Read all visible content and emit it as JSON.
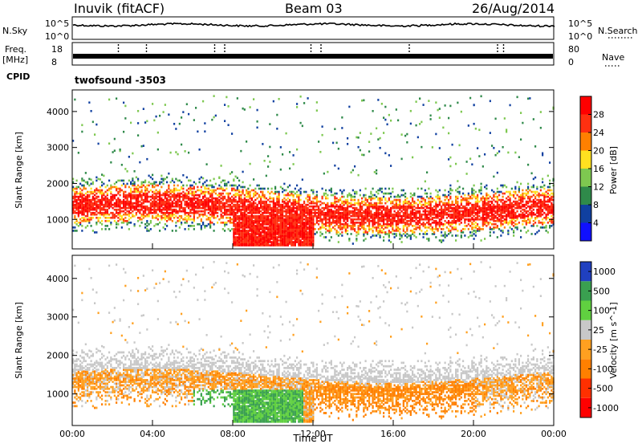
{
  "header": {
    "station": "Inuvik (fitACF)",
    "beam": "Beam 03",
    "date": "26/Aug/2014"
  },
  "top_strips": {
    "nsky_label": "N.Sky",
    "nsky_ticks": [
      "10^5",
      "10^0"
    ],
    "nsearch_label": "N.Search",
    "nsearch_ticks": [
      "10^5",
      "10^0"
    ],
    "freq_label_1": "Freq.",
    "freq_label_2": "[MHz]",
    "freq_ticks": [
      "18",
      "8"
    ],
    "nave_label": "Nave",
    "nave_ticks": [
      "80",
      "0"
    ],
    "cpid_label": "CPID",
    "cpid_value": "twofsound -3503"
  },
  "chart_data": [
    {
      "type": "heatmap",
      "name": "power",
      "ylabel": "Slant Range [km]",
      "xlabel": "Time UT",
      "ylim": [
        180,
        4600
      ],
      "xlim_hours": [
        0,
        24
      ],
      "y_ticks": [
        "1000",
        "2000",
        "3000",
        "4000"
      ],
      "x_ticks": [
        "00:00",
        "04:00",
        "08:00",
        "12:00",
        "16:00",
        "20:00",
        "00:00"
      ],
      "colorbar_label": "Power [dB]",
      "colorbar_ticks": [
        "4",
        "8",
        "12",
        "16",
        "20",
        "24",
        "28"
      ],
      "colorbar_colors": [
        "#1010ff",
        "#1040a0",
        "#2f8a4a",
        "#7ec850",
        "#ffe020",
        "#ff8000",
        "#ff3010",
        "#ff0000"
      ],
      "scatter_regions": [
        {
          "t": [
            0,
            24
          ],
          "range": [
            600,
            1900
          ],
          "level": "high"
        },
        {
          "t": [
            8,
            12
          ],
          "range": [
            180,
            1100
          ],
          "level": "very-high"
        },
        {
          "t": [
            0,
            24
          ],
          "range": [
            1900,
            3300
          ],
          "level": "low"
        }
      ]
    },
    {
      "type": "heatmap",
      "name": "velocity",
      "ylabel": "Slant Range [km]",
      "xlabel": "Time UT",
      "ylim": [
        180,
        4600
      ],
      "xlim_hours": [
        0,
        24
      ],
      "y_ticks": [
        "1000",
        "2000",
        "3000",
        "4000"
      ],
      "x_ticks": [
        "00:00",
        "04:00",
        "08:00",
        "12:00",
        "16:00",
        "20:00",
        "00:00"
      ],
      "colorbar_label": "Velocity [m s^-1]",
      "colorbar_ticks": [
        "1000",
        "500",
        "100",
        "25",
        "-25",
        "-100",
        "-500",
        "-1000"
      ],
      "colorbar_colors": [
        "#2040c0",
        "#3aa050",
        "#60d040",
        "#c8c8c8",
        "#ffa020",
        "#ff8000",
        "#ff3000",
        "#ff0000"
      ]
    }
  ],
  "x_axis_title": "Time UT"
}
